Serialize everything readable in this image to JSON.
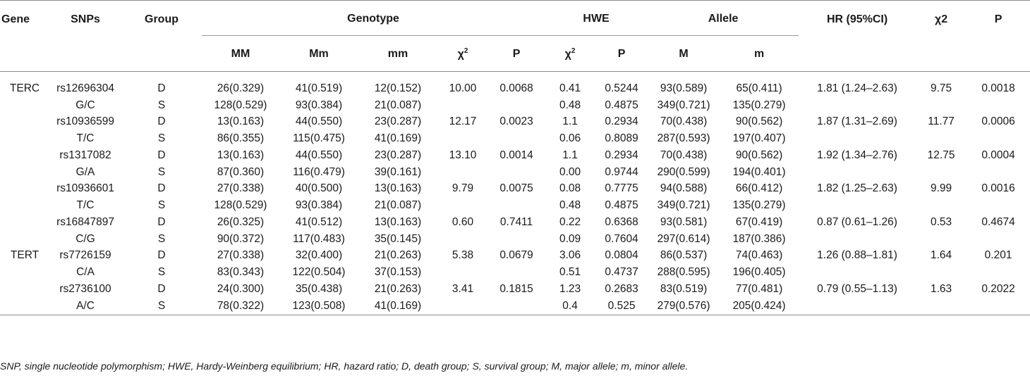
{
  "headers": {
    "gene": "Gene",
    "snps": "SNPs",
    "group": "Group",
    "genotype": "Genotype",
    "hwe": "HWE",
    "allele": "Allele",
    "hr": "HR (95%CI)",
    "chi2_main": "χ2",
    "p_main": "P",
    "sub": {
      "mm_upper": "MM",
      "mm_mixed": "Mm",
      "mm_lower": "mm",
      "chi": "χ",
      "chi_sup": "2",
      "p": "P",
      "M": "M",
      "m": "m"
    }
  },
  "rows": [
    {
      "gene": "TERC",
      "snp": "rs12696304",
      "group": "D",
      "MM": "26(0.329)",
      "Mm": "41(0.519)",
      "mm": "12(0.152)",
      "g_chi2": "10.00",
      "g_p": "0.0068",
      "hwe_chi2": "0.41",
      "hwe_p": "0.5244",
      "M": "93(0.589)",
      "m": "65(0.411)",
      "hr": "1.81 (1.24–2.63)",
      "chi2": "9.75",
      "p": "0.0018"
    },
    {
      "gene": "",
      "snp": "G/C",
      "group": "S",
      "MM": "128(0.529)",
      "Mm": "93(0.384)",
      "mm": "21(0.087)",
      "g_chi2": "",
      "g_p": "",
      "hwe_chi2": "0.48",
      "hwe_p": "0.4875",
      "M": "349(0.721)",
      "m": "135(0.279)",
      "hr": "",
      "chi2": "",
      "p": ""
    },
    {
      "gene": "",
      "snp": "rs10936599",
      "group": "D",
      "MM": "13(0.163)",
      "Mm": "44(0.550)",
      "mm": "23(0.287)",
      "g_chi2": "12.17",
      "g_p": "0.0023",
      "hwe_chi2": "1.1",
      "hwe_p": "0.2934",
      "M": "70(0.438)",
      "m": "90(0.562)",
      "hr": "1.87 (1.31–2.69)",
      "chi2": "11.77",
      "p": "0.0006"
    },
    {
      "gene": "",
      "snp": "T/C",
      "group": "S",
      "MM": "86(0.355)",
      "Mm": "115(0.475)",
      "mm": "41(0.169)",
      "g_chi2": "",
      "g_p": "",
      "hwe_chi2": "0.06",
      "hwe_p": "0.8089",
      "M": "287(0.593)",
      "m": "197(0.407)",
      "hr": "",
      "chi2": "",
      "p": ""
    },
    {
      "gene": "",
      "snp": "rs1317082",
      "group": "D",
      "MM": "13(0.163)",
      "Mm": "44(0.550)",
      "mm": "23(0.287)",
      "g_chi2": "13.10",
      "g_p": "0.0014",
      "hwe_chi2": "1.1",
      "hwe_p": "0.2934",
      "M": "70(0.438)",
      "m": "90(0.562)",
      "hr": "1.92 (1.34–2.76)",
      "chi2": "12.75",
      "p": "0.0004"
    },
    {
      "gene": "",
      "snp": "G/A",
      "group": "S",
      "MM": "87(0.360)",
      "Mm": "116(0.479)",
      "mm": "39(0.161)",
      "g_chi2": "",
      "g_p": "",
      "hwe_chi2": "0.00",
      "hwe_p": "0.9744",
      "M": "290(0.599)",
      "m": "194(0.401)",
      "hr": "",
      "chi2": "",
      "p": ""
    },
    {
      "gene": "",
      "snp": "rs10936601",
      "group": "D",
      "MM": "27(0.338)",
      "Mm": "40(0.500)",
      "mm": "13(0.163)",
      "g_chi2": "9.79",
      "g_p": "0.0075",
      "hwe_chi2": "0.08",
      "hwe_p": "0.7775",
      "M": "94(0.588)",
      "m": "66(0.412)",
      "hr": "1.82 (1.25–2.63)",
      "chi2": "9.99",
      "p": "0.0016"
    },
    {
      "gene": "",
      "snp": "T/C",
      "group": "S",
      "MM": "128(0.529)",
      "Mm": "93(0.384)",
      "mm": "21(0.087)",
      "g_chi2": "",
      "g_p": "",
      "hwe_chi2": "0.48",
      "hwe_p": "0.4875",
      "M": "349(0.721)",
      "m": "135(0.279)",
      "hr": "",
      "chi2": "",
      "p": ""
    },
    {
      "gene": "",
      "snp": "rs16847897",
      "group": "D",
      "MM": "26(0.325)",
      "Mm": "41(0.512)",
      "mm": "13(0.163)",
      "g_chi2": "0.60",
      "g_p": "0.7411",
      "hwe_chi2": "0.22",
      "hwe_p": "0.6368",
      "M": "93(0.581)",
      "m": "67(0.419)",
      "hr": "0.87 (0.61–1.26)",
      "chi2": "0.53",
      "p": "0.4674"
    },
    {
      "gene": "",
      "snp": "C/G",
      "group": "S",
      "MM": "90(0.372)",
      "Mm": "117(0.483)",
      "mm": "35(0.145)",
      "g_chi2": "",
      "g_p": "",
      "hwe_chi2": "0.09",
      "hwe_p": "0.7604",
      "M": "297(0.614)",
      "m": "187(0.386)",
      "hr": "",
      "chi2": "",
      "p": ""
    },
    {
      "gene": "TERT",
      "snp": "rs7726159",
      "group": "D",
      "MM": "27(0.338)",
      "Mm": "32(0.400)",
      "mm": "21(0.263)",
      "g_chi2": "5.38",
      "g_p": "0.0679",
      "hwe_chi2": "3.06",
      "hwe_p": "0.0804",
      "M": "86(0.537)",
      "m": "74(0.463)",
      "hr": "1.26 (0.88–1.81)",
      "chi2": "1.64",
      "p": "0.201"
    },
    {
      "gene": "",
      "snp": "C/A",
      "group": "S",
      "MM": "83(0.343)",
      "Mm": "122(0.504)",
      "mm": "37(0.153)",
      "g_chi2": "",
      "g_p": "",
      "hwe_chi2": "0.51",
      "hwe_p": "0.4737",
      "M": "288(0.595)",
      "m": "196(0.405)",
      "hr": "",
      "chi2": "",
      "p": ""
    },
    {
      "gene": "",
      "snp": "rs2736100",
      "group": "D",
      "MM": "24(0.300)",
      "Mm": "35(0.438)",
      "mm": "21(0.263)",
      "g_chi2": "3.41",
      "g_p": "0.1815",
      "hwe_chi2": "1.23",
      "hwe_p": "0.2683",
      "M": "83(0.519)",
      "m": "77(0.481)",
      "hr": "0.79 (0.55–1.13)",
      "chi2": "1.63",
      "p": "0.2022"
    },
    {
      "gene": "",
      "snp": "A/C",
      "group": "S",
      "MM": "78(0.322)",
      "Mm": "123(0.508)",
      "mm": "41(0.169)",
      "g_chi2": "",
      "g_p": "",
      "hwe_chi2": "0.4",
      "hwe_p": "0.525",
      "M": "279(0.576)",
      "m": "205(0.424)",
      "hr": "",
      "chi2": "",
      "p": ""
    }
  ],
  "footnote": "SNP, single nucleotide polymorphism; HWE, Hardy-Weinberg equilibrium; HR, hazard ratio; D, death group; S, survival group; M, major allele; m, minor allele."
}
